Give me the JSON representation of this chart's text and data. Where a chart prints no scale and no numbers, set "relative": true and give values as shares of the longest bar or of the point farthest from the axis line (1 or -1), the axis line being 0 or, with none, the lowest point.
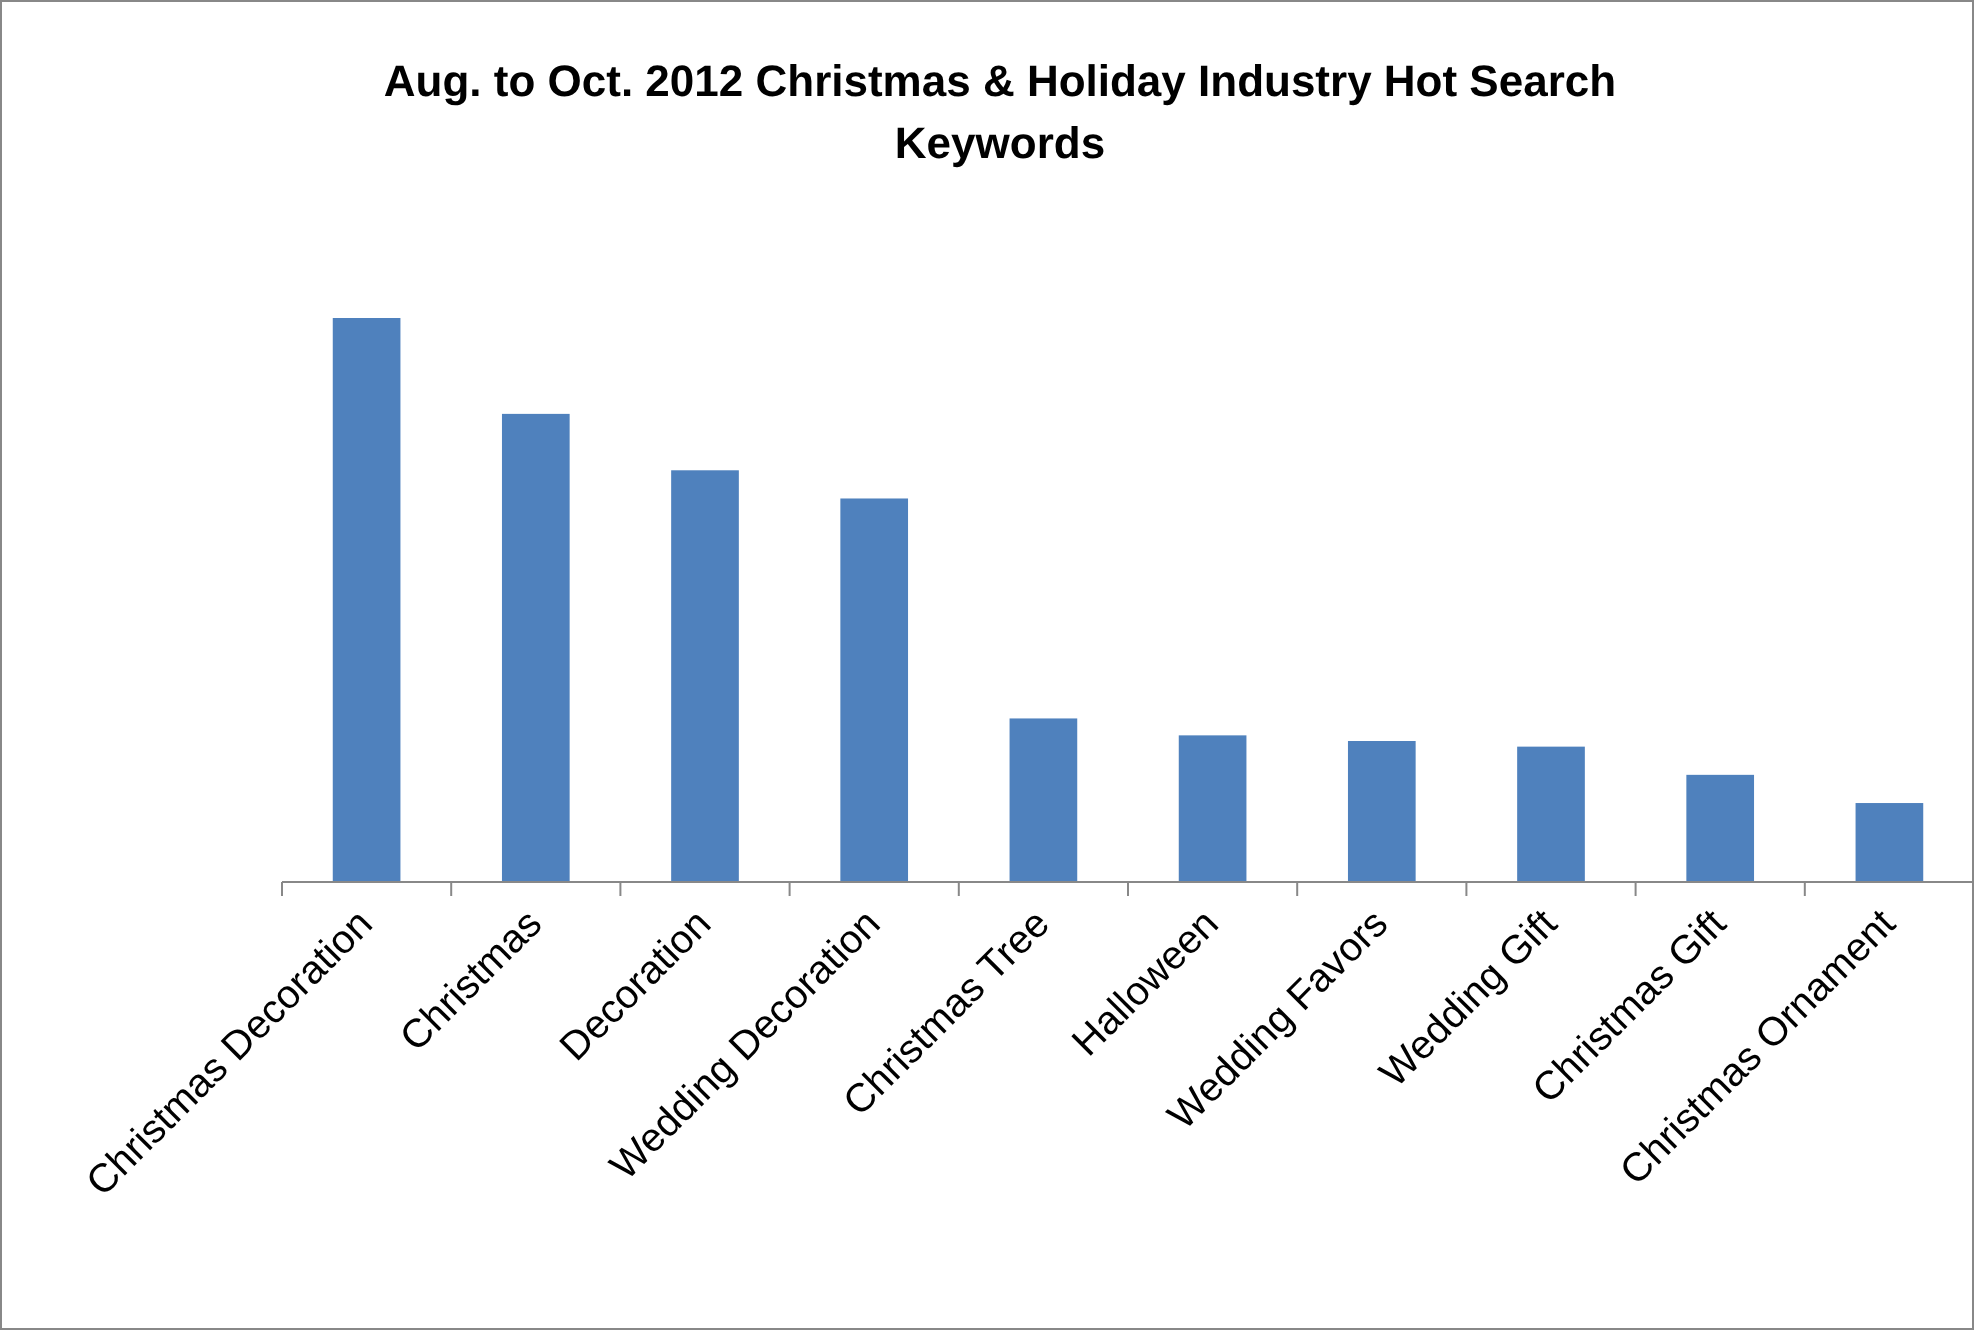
{
  "chart_data": {
    "type": "bar",
    "title": "Aug. to Oct. 2012 Christmas & Holiday Industry Hot Search Keywords",
    "relative": true,
    "categories": [
      "Christmas Decoration",
      "Christmas",
      "Decoration",
      "Wedding Decoration",
      "Christmas Tree",
      "Halloween",
      "Wedding Favors",
      "Wedding Gift",
      "Christmas Gift",
      "Christmas Ornament"
    ],
    "values": [
      1,
      0.83,
      0.73,
      0.68,
      0.29,
      0.26,
      0.25,
      0.24,
      0.19,
      0.14
    ],
    "color": "#4f81bd"
  }
}
